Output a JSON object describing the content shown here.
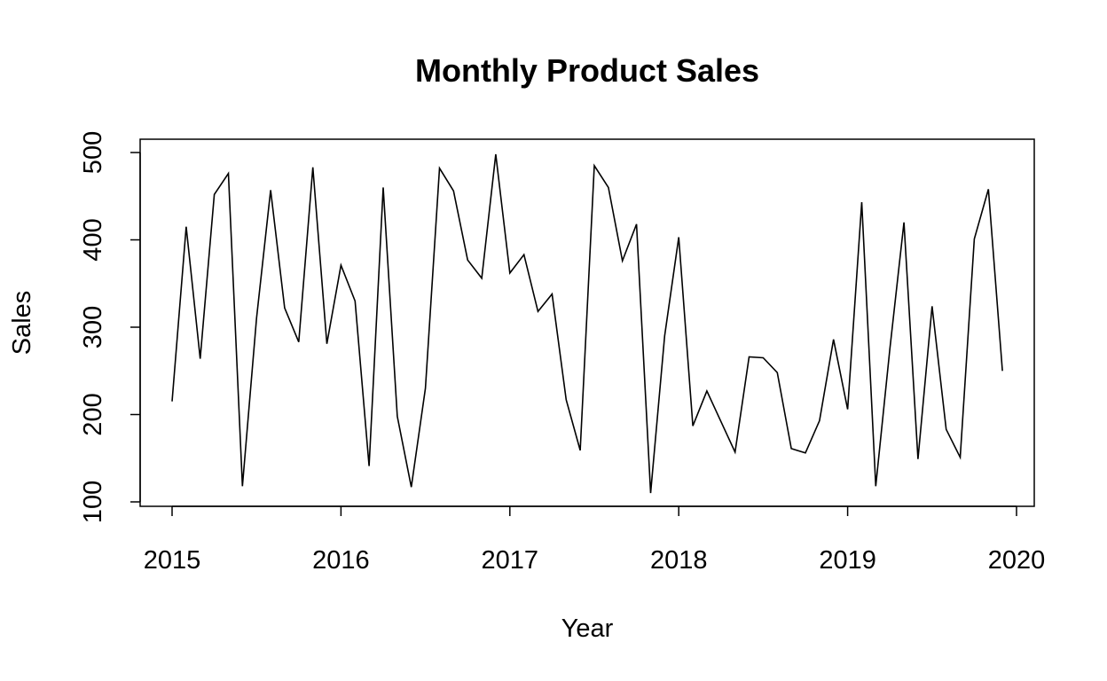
{
  "chart_data": {
    "type": "line",
    "title": "Monthly Product Sales",
    "xlabel": "Year",
    "ylabel": "Sales",
    "x_ticks": [
      "2015",
      "2016",
      "2017",
      "2018",
      "2019",
      "2020"
    ],
    "y_ticks": [
      "100",
      "200",
      "300",
      "400",
      "500"
    ],
    "xlim": [
      2015,
      2020
    ],
    "ylim": [
      100,
      500
    ],
    "grid": false,
    "line_color": "#000000",
    "series": [
      {
        "x": [
          2015.0,
          2015.0833,
          2015.1667,
          2015.25,
          2015.3333,
          2015.4167,
          2015.5,
          2015.5833,
          2015.6667,
          2015.75,
          2015.8333,
          2015.9167,
          2016.0,
          2016.0833,
          2016.1667,
          2016.25,
          2016.3333,
          2016.4167,
          2016.5,
          2016.5833,
          2016.6667,
          2016.75,
          2016.8333,
          2016.9167,
          2017.0,
          2017.0833,
          2017.1667,
          2017.25,
          2017.3333,
          2017.4167,
          2017.5,
          2017.5833,
          2017.6667,
          2017.75,
          2017.8333,
          2017.9167,
          2018.0,
          2018.0833,
          2018.1667,
          2018.25,
          2018.3333,
          2018.4167,
          2018.5,
          2018.5833,
          2018.6667,
          2018.75,
          2018.8333,
          2018.9167,
          2019.0,
          2019.0833,
          2019.1667,
          2019.25,
          2019.3333,
          2019.4167,
          2019.5,
          2019.5833,
          2019.6667,
          2019.75,
          2019.8333,
          2019.9167
        ],
        "values": [
          215,
          415,
          264,
          452,
          476,
          118,
          310,
          457,
          322,
          283,
          483,
          281,
          371,
          330,
          141,
          460,
          198,
          117,
          230,
          482,
          456,
          377,
          356,
          498,
          362,
          383,
          318,
          338,
          217,
          159,
          485,
          460,
          376,
          418,
          110,
          290,
          403,
          187,
          227,
          192,
          157,
          266,
          265,
          248,
          161,
          156,
          193,
          286,
          206,
          443,
          118,
          275,
          420,
          149,
          324,
          183,
          151,
          401,
          458,
          250
        ]
      }
    ]
  }
}
